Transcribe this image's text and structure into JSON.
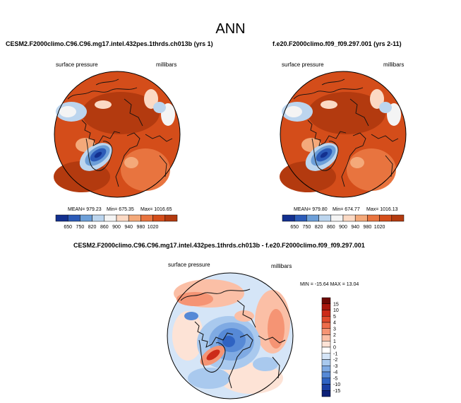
{
  "figure": {
    "title": "ANN",
    "colors": {
      "deep_red": "#b33a0f",
      "red": "#d44d1a",
      "orange": "#e8743f",
      "light_orange": "#f4a97a",
      "peach": "#fbd9c4",
      "white": "#f4f4f4",
      "light_blue": "#bcd5ee",
      "blue": "#6d9fd8",
      "dark_blue": "#2c5bb8",
      "navy": "#13308f"
    }
  },
  "panels": {
    "top_left": {
      "title": "CESM2.F2000climo.C96.C96.mg17.intel.432pes.1thrds.ch013b (yrs 1)",
      "left_label": "surface pressure",
      "right_label": "millibars",
      "stats": {
        "mean": "MEAN= 979.23",
        "min": "Min= 675.35",
        "max": "Max= 1016.65"
      }
    },
    "top_right": {
      "title": "f.e20.F2000climo.f09_f09.297.001 (yrs 2-11)",
      "left_label": "surface pressure",
      "right_label": "millibars",
      "stats": {
        "mean": "MEAN= 979.80",
        "min": "Min= 674.77",
        "max": "Max= 1016.13"
      }
    },
    "bottom": {
      "title": "CESM2.F2000climo.C96.C96.mg17.intel.432pes.1thrds.ch013b - f.e20.F2000climo.f09_f09.297.001",
      "left_label": "surface pressure",
      "right_label": "millibars",
      "stats": {
        "minmax": "MIN = -15.64 MAX = 13.04"
      }
    }
  },
  "chart_data": [
    {
      "type": "heatmap",
      "projection": "polar-stereographic (north)",
      "variable": "surface pressure",
      "units": "millibars",
      "title": "CESM2.F2000climo.C96.C96.mg17.intel.432pes.1thrds.ch013b (yrs 1)",
      "mean": 979.23,
      "min": 675.35,
      "max": 1016.65,
      "colorbar_levels": [
        "650",
        "750",
        "820",
        "860",
        "900",
        "940",
        "980",
        "1020"
      ],
      "colorbar_colors": [
        "#13308f",
        "#2c5bb8",
        "#6d9fd8",
        "#bcd5ee",
        "#f4f4f4",
        "#fbd9c4",
        "#f4a97a",
        "#e8743f",
        "#d44d1a",
        "#b33a0f"
      ]
    },
    {
      "type": "heatmap",
      "projection": "polar-stereographic (north)",
      "variable": "surface pressure",
      "units": "millibars",
      "title": "f.e20.F2000climo.f09_f09.297.001 (yrs 2-11)",
      "mean": 979.8,
      "min": 674.77,
      "max": 1016.13,
      "colorbar_levels": [
        "650",
        "750",
        "820",
        "860",
        "900",
        "940",
        "980",
        "1020"
      ],
      "colorbar_colors": [
        "#13308f",
        "#2c5bb8",
        "#6d9fd8",
        "#bcd5ee",
        "#f4f4f4",
        "#fbd9c4",
        "#f4a97a",
        "#e8743f",
        "#d44d1a",
        "#b33a0f"
      ]
    },
    {
      "type": "heatmap",
      "projection": "polar-stereographic (north)",
      "variable": "surface pressure difference",
      "units": "millibars",
      "title": "CESM2.F2000climo.C96.C96.mg17.intel.432pes.1thrds.ch013b - f.e20.F2000climo.f09_f09.297.001",
      "min": -15.64,
      "max": 13.04,
      "colorbar_levels": [
        "15",
        "10",
        "5",
        "4",
        "3",
        "2",
        "1",
        "0",
        "-1",
        "-2",
        "-3",
        "-4",
        "-5",
        "-10",
        "-15"
      ],
      "colorbar_colors": [
        "#6e0a05",
        "#a8160c",
        "#cc2a18",
        "#e14a2c",
        "#ee6c4a",
        "#f59474",
        "#fbbfa6",
        "#fde3d6",
        "#ffffff",
        "#d5e5f7",
        "#a9c9ee",
        "#7faae3",
        "#5689d6",
        "#2f63c2",
        "#1a3fa3",
        "#0d2178"
      ]
    }
  ]
}
